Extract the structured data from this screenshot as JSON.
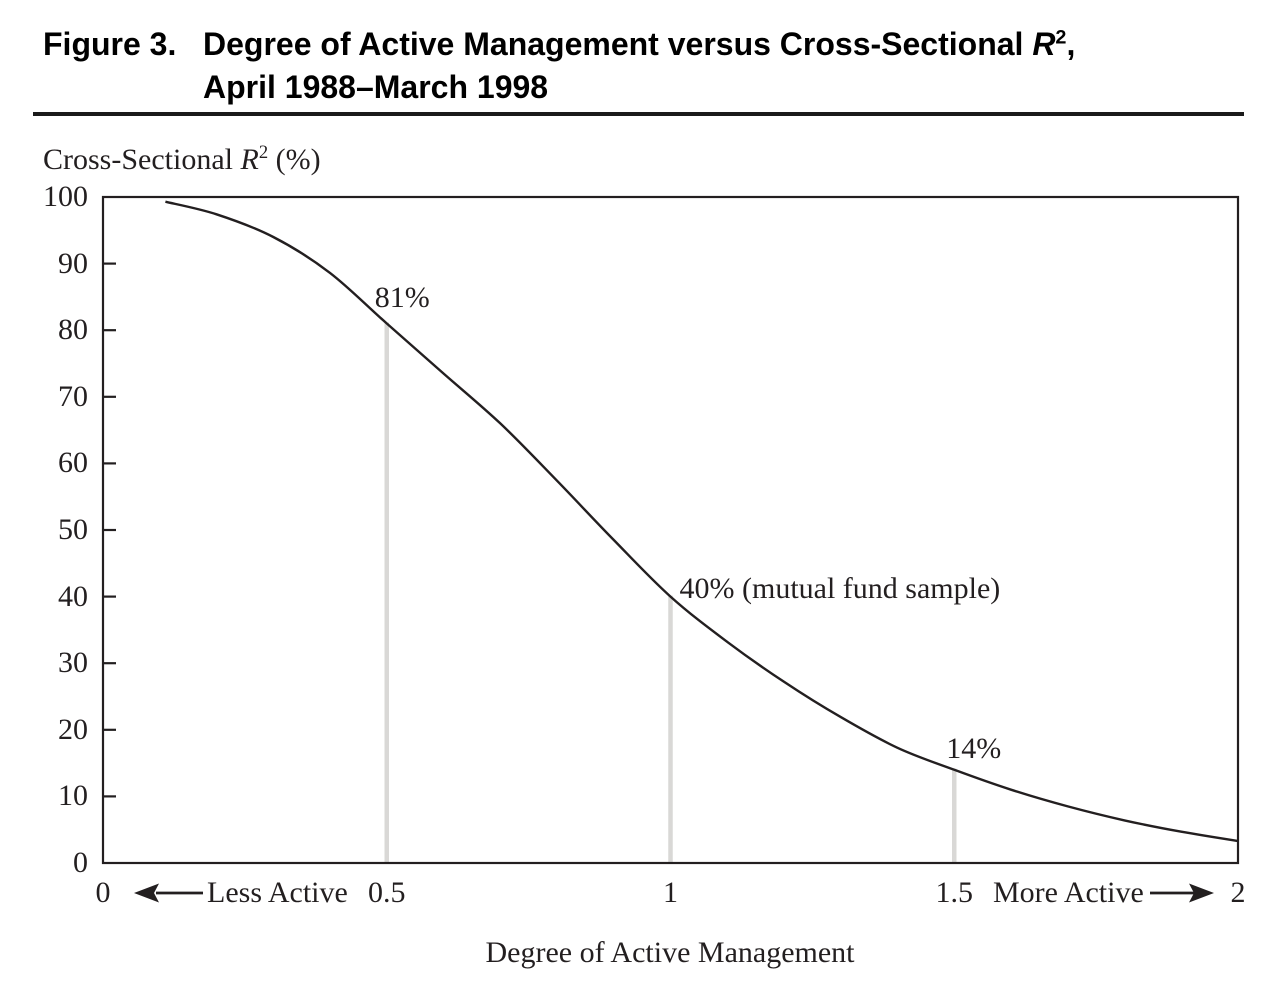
{
  "header": {
    "figure_label": "Figure 3.",
    "line1_pre": "Degree of Active Management versus Cross-Sectional ",
    "r": "R",
    "sup": "2",
    "line1_post": ",",
    "line2": "April 1988–March 1998"
  },
  "y_axis_title": {
    "pre": "Cross-Sectional ",
    "r": "R",
    "sup": "2",
    "post": " (%)"
  },
  "x_axis": {
    "title": "Degree of Active Management",
    "less": "Less Active",
    "more": "More Active"
  },
  "colors": {
    "curve": "#231f20",
    "dropline": "#d9d8d6",
    "title": "#000000"
  },
  "chart_data": {
    "type": "line",
    "title": "Figure 3. Degree of Active Management versus Cross-Sectional R², April 1988–March 1998",
    "xlabel": "Degree of Active Management",
    "ylabel": "Cross-Sectional R² (%)",
    "xlim": [
      0,
      2
    ],
    "ylim": [
      0,
      100
    ],
    "x_ticks": [
      0,
      0.5,
      1,
      1.5,
      2
    ],
    "y_ticks": [
      100,
      90,
      80,
      70,
      60,
      50,
      40,
      30,
      20,
      10,
      0
    ],
    "grid": false,
    "legend": "none",
    "x": [
      0.11,
      0.2,
      0.3,
      0.4,
      0.5,
      0.6,
      0.7,
      0.8,
      0.9,
      1.0,
      1.1,
      1.2,
      1.3,
      1.4,
      1.5,
      1.6,
      1.7,
      1.8,
      1.9,
      2.0
    ],
    "y": [
      99.3,
      97.4,
      94.0,
      88.6,
      81.0,
      73.5,
      66.0,
      57.4,
      48.5,
      40.0,
      33.2,
      27.2,
      21.9,
      17.3,
      14.0,
      11.0,
      8.5,
      6.4,
      4.7,
      3.3
    ],
    "annotations": [
      {
        "x": 0.5,
        "y": 81,
        "text": "81%"
      },
      {
        "x": 1.0,
        "y": 40,
        "text": "40% (mutual fund sample)"
      },
      {
        "x": 1.5,
        "y": 14,
        "text": "14%"
      }
    ],
    "droplines_x": [
      0.5,
      1.0,
      1.5
    ]
  }
}
